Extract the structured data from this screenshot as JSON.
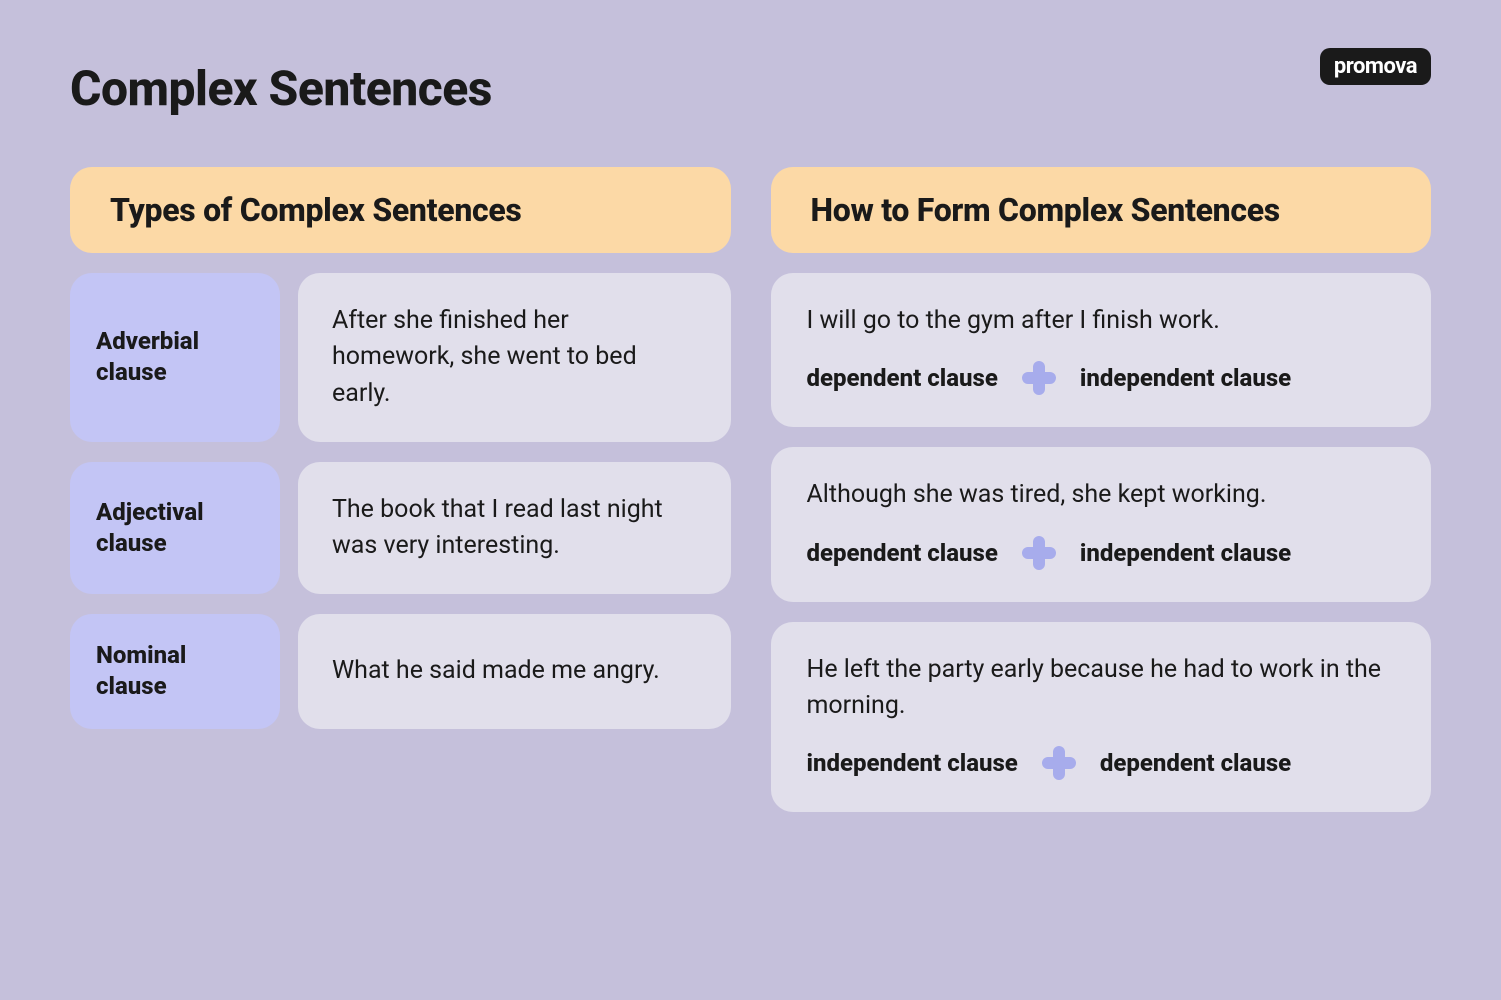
{
  "page": {
    "title": "Complex Sentences",
    "brand": "promova",
    "background_color": "#c5c0db",
    "header_pill_color": "#fcd9a6",
    "label_pill_color": "#c3c5f5",
    "card_color": "#e1dfeb",
    "plus_color": "#a7acec",
    "text_color": "#1a1a1a"
  },
  "left": {
    "heading": "Types of Complex Sentences",
    "rows": [
      {
        "label": "Adverbial clause",
        "example": "After she finished her homework, she went to bed early."
      },
      {
        "label": "Adjectival clause",
        "example": "The book that I read last night was very interesting."
      },
      {
        "label": "Nominal clause",
        "example": "What he said made me angry."
      }
    ]
  },
  "right": {
    "heading": "How to Form Complex Sentences",
    "cards": [
      {
        "sentence": "I will go to the gym after I finish work.",
        "left_term": "dependent clause",
        "right_term": "independent clause"
      },
      {
        "sentence": "Although she was tired, she kept working.",
        "left_term": "dependent clause",
        "right_term": "independent clause"
      },
      {
        "sentence": "He left the party early because he had to work in the morning.",
        "left_term": "independent clause",
        "right_term": "dependent clause"
      }
    ]
  }
}
